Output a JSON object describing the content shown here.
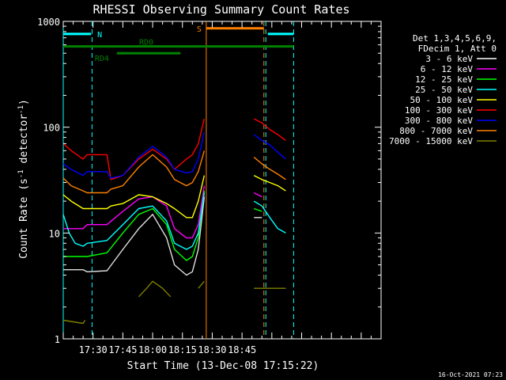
{
  "chart_data": {
    "type": "line",
    "title": "RHESSI Observing Summary Count Rates",
    "xlabel": "Start Time (13-Dec-08 17:15:22)",
    "ylabel_parts": [
      "Count Rate (s",
      "-1",
      " detector",
      "-1",
      ")"
    ],
    "yscale": "log",
    "ylim": [
      1,
      1000
    ],
    "xlim_min": [
      0,
      160
    ],
    "y_ticks": [
      {
        "value": 1,
        "label": "1"
      },
      {
        "value": 10,
        "label": "10"
      },
      {
        "value": 100,
        "label": "100"
      },
      {
        "value": 1000,
        "label": "1000"
      }
    ],
    "x_ticks": [
      {
        "value": 15,
        "label": "17:30"
      },
      {
        "value": 30,
        "label": "17:45"
      },
      {
        "value": 45,
        "label": "18:00"
      },
      {
        "value": 60,
        "label": "18:15"
      },
      {
        "value": 75,
        "label": "18:30"
      },
      {
        "value": 90,
        "label": "18:45"
      }
    ],
    "timestamp": "16-Oct-2021 07:23",
    "legend_header": [
      "Det 1,3,4,5,6,9,",
      "FDecim 1, Att 0"
    ],
    "series": [
      {
        "name": "3 - 6 keV",
        "color": "#000000",
        "legend_swatch": "#ffffff",
        "segments": [
          {
            "x": [
              0,
              10,
              12,
              22,
              30,
              38,
              45,
              52,
              56,
              62,
              65,
              68,
              71
            ],
            "y": [
              4.5,
              4.5,
              4.3,
              4.4,
              7,
              11,
              15,
              9,
              5,
              4,
              4.3,
              7,
              22
            ]
          },
          {
            "x": [
              96,
              100
            ],
            "y": [
              14,
              14
            ]
          }
        ]
      },
      {
        "name": "6 - 12 keV",
        "color": "#ff00ff",
        "segments": [
          {
            "x": [
              0,
              10,
              12,
              22,
              30,
              38,
              45,
              52,
              56,
              62,
              65,
              68,
              71
            ],
            "y": [
              11,
              11,
              12,
              12,
              16,
              21,
              22,
              18,
              11,
              9,
              9,
              12,
              28
            ]
          },
          {
            "x": [
              96,
              100
            ],
            "y": [
              24,
              22
            ]
          }
        ]
      },
      {
        "name": "12 - 25 keV",
        "color": "#00ff00",
        "segments": [
          {
            "x": [
              0,
              10,
              12,
              22,
              30,
              38,
              45,
              52,
              56,
              62,
              65,
              68,
              71
            ],
            "y": [
              6,
              6,
              6,
              6.5,
              10,
              15,
              17,
              12,
              7,
              5.5,
              6,
              9,
              25
            ]
          },
          {
            "x": [
              96,
              100
            ],
            "y": [
              17,
              16
            ]
          }
        ]
      },
      {
        "name": "25 - 50 keV",
        "color": "#00ffff",
        "segments": [
          {
            "x": [
              0,
              3,
              6,
              10,
              12,
              22,
              30,
              38,
              45,
              52,
              56,
              62,
              65,
              68,
              71
            ],
            "y": [
              15,
              10,
              8,
              7.5,
              8,
              8.5,
              12,
              17,
              18,
              13,
              8,
              7,
              7.5,
              10,
              24
            ]
          },
          {
            "x": [
              96,
              100,
              104,
              108,
              112
            ],
            "y": [
              20,
              18,
              14,
              11,
              10
            ]
          }
        ]
      },
      {
        "name": "50 - 100 keV",
        "color": "#ffff00",
        "segments": [
          {
            "x": [
              0,
              4,
              10,
              12,
              22,
              24,
              30,
              38,
              45,
              52,
              56,
              62,
              65,
              68,
              71
            ],
            "y": [
              23,
              20,
              17,
              17,
              17,
              18,
              19,
              23,
              22,
              19,
              17,
              14,
              14,
              20,
              35
            ]
          },
          {
            "x": [
              96,
              100,
              104,
              108,
              112
            ],
            "y": [
              35,
              32,
              30,
              28,
              25
            ]
          }
        ]
      },
      {
        "name": "100 - 300 keV",
        "color": "#ff0000",
        "segments": [
          {
            "x": [
              0,
              4,
              10,
              12,
              22,
              24,
              30,
              38,
              45,
              52,
              56,
              62,
              65,
              68,
              71
            ],
            "y": [
              70,
              60,
              50,
              55,
              55,
              32,
              35,
              50,
              62,
              50,
              40,
              50,
              55,
              70,
              120
            ]
          },
          {
            "x": [
              96,
              100,
              104,
              108,
              112
            ],
            "y": [
              120,
              110,
              95,
              85,
              75
            ]
          }
        ]
      },
      {
        "name": "300 - 800 keV",
        "color": "#0000ff",
        "segments": [
          {
            "x": [
              0,
              4,
              10,
              12,
              22,
              24,
              30,
              38,
              45,
              52,
              56,
              62,
              65,
              68,
              71
            ],
            "y": [
              45,
              40,
              35,
              38,
              38,
              33,
              35,
              52,
              66,
              52,
              40,
              37,
              38,
              50,
              90
            ]
          },
          {
            "x": [
              96,
              100,
              104,
              108,
              112
            ],
            "y": [
              85,
              75,
              68,
              58,
              50
            ]
          }
        ]
      },
      {
        "name": "800 - 7000 keV",
        "color": "#ff8000",
        "segments": [
          {
            "x": [
              0,
              4,
              10,
              12,
              22,
              24,
              30,
              38,
              45,
              52,
              56,
              62,
              65,
              68,
              71
            ],
            "y": [
              33,
              28,
              25,
              24,
              24,
              26,
              28,
              42,
              55,
              42,
              32,
              28,
              30,
              38,
              60
            ]
          },
          {
            "x": [
              96,
              100,
              104,
              108,
              112
            ],
            "y": [
              52,
              45,
              40,
              36,
              32
            ]
          }
        ]
      },
      {
        "name": "7000 - 15000 keV",
        "color": "#808000",
        "segments": [
          {
            "x": [
              0,
              10,
              11
            ],
            "y": [
              1.5,
              1.4,
              1.5
            ]
          },
          {
            "x": [
              38,
              42,
              45,
              50,
              54
            ],
            "y": [
              2.5,
              3,
              3.5,
              3,
              2.5
            ]
          },
          {
            "x": [
              68,
              71
            ],
            "y": [
              3,
              3.5
            ]
          },
          {
            "x": [
              96,
              112
            ],
            "y": [
              3,
              3
            ]
          }
        ]
      }
    ],
    "markers": [
      {
        "label": "N",
        "color": "#00ffff",
        "x_start": 0,
        "x_end": 14,
        "y": 760
      },
      {
        "label": "S",
        "color": "#ff8000",
        "x_start": 72,
        "x_end": 101,
        "y": 860
      },
      {
        "label": "",
        "color": "#00ffff",
        "x_start": 103,
        "x_end": 116,
        "y": 760
      }
    ],
    "mode_bars": [
      {
        "label": "RD0",
        "color": "#008000",
        "x_start": 0,
        "x_end": 116,
        "y": 580
      },
      {
        "label": "RD4",
        "color": "#008000",
        "x_start": 27,
        "x_end": 59,
        "y": 500
      }
    ],
    "vlines": [
      {
        "x": 0,
        "color": "#00ffff",
        "style": "solid"
      },
      {
        "x": 14.5,
        "color": "#00ffff",
        "style": "dashed"
      },
      {
        "x": 72,
        "color": "#ff8000",
        "style": "solid"
      },
      {
        "x": 101,
        "color": "#ff8000",
        "style": "dashed"
      },
      {
        "x": 102,
        "color": "#00ffff",
        "style": "dashed"
      },
      {
        "x": 116,
        "color": "#00ffff",
        "style": "dashed"
      }
    ]
  }
}
